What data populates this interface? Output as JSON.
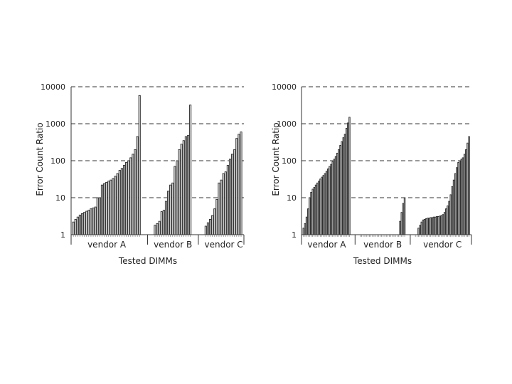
{
  "chart_data": [
    {
      "type": "bar",
      "title": "",
      "ylabel": "Error Count Ratio",
      "xlabel": "Tested DIMMs",
      "yscale": "log",
      "ylim": [
        1,
        10000
      ],
      "y_ticks": [
        1,
        10,
        100,
        1000,
        10000
      ],
      "y_tick_labels": [
        "1",
        "10",
        "100",
        "1000",
        "10000"
      ],
      "grid": "dashed horizontal",
      "groups": [
        {
          "name": "vendor A",
          "values": [
            2.2,
            2.6,
            3,
            3.4,
            3.7,
            4,
            4.3,
            4.6,
            5,
            5.3,
            5.6,
            10,
            10,
            22,
            24,
            26,
            28,
            30,
            33,
            38,
            45,
            55,
            62,
            75,
            90,
            100,
            120,
            150,
            200,
            450,
            5800
          ]
        },
        {
          "name": "vendor B",
          "values": [
            1.8,
            2.0,
            2.3,
            4.2,
            4.6,
            8,
            15,
            22,
            25,
            70,
            100,
            200,
            280,
            350,
            450,
            480,
            3200
          ]
        },
        {
          "name": "vendor C",
          "values": [
            1.7,
            2.1,
            2.6,
            3.3,
            5,
            9,
            25,
            30,
            45,
            50,
            75,
            110,
            150,
            200,
            400,
            520,
            600
          ]
        }
      ]
    },
    {
      "type": "bar",
      "title": "",
      "ylabel": "Error Count Ratio",
      "xlabel": "Tested DIMMs",
      "yscale": "log",
      "ylim": [
        1,
        10000
      ],
      "y_ticks": [
        1,
        10,
        100,
        1000,
        10000
      ],
      "y_tick_labels": [
        "1",
        "10",
        "100",
        "1000",
        "10000"
      ],
      "grid": "dashed horizontal",
      "groups": [
        {
          "name": "vendor A",
          "values": [
            1.5,
            2,
            3,
            5,
            10,
            14,
            17,
            19,
            22,
            25,
            28,
            32,
            36,
            40,
            45,
            52,
            60,
            70,
            80,
            95,
            110,
            130,
            160,
            200,
            260,
            330,
            420,
            520,
            750,
            1050,
            1500
          ]
        },
        {
          "name": "vendor B",
          "values": [
            1,
            1,
            1,
            1,
            1,
            1,
            1,
            1,
            1,
            1,
            1,
            1,
            1,
            1,
            1,
            1,
            1,
            1,
            1,
            1,
            1,
            1,
            1,
            1,
            1,
            1,
            2.3,
            4,
            7,
            10
          ]
        },
        {
          "name": "vendor C",
          "values": [
            1,
            1,
            1.5,
            1.8,
            2.2,
            2.5,
            2.6,
            2.7,
            2.8,
            2.8,
            2.9,
            2.9,
            3,
            3,
            3.1,
            3.1,
            3.2,
            3.3,
            3.5,
            4,
            5,
            6,
            8,
            12,
            20,
            30,
            45,
            65,
            90,
            100,
            110,
            120,
            150,
            200,
            300,
            450
          ]
        }
      ]
    }
  ]
}
